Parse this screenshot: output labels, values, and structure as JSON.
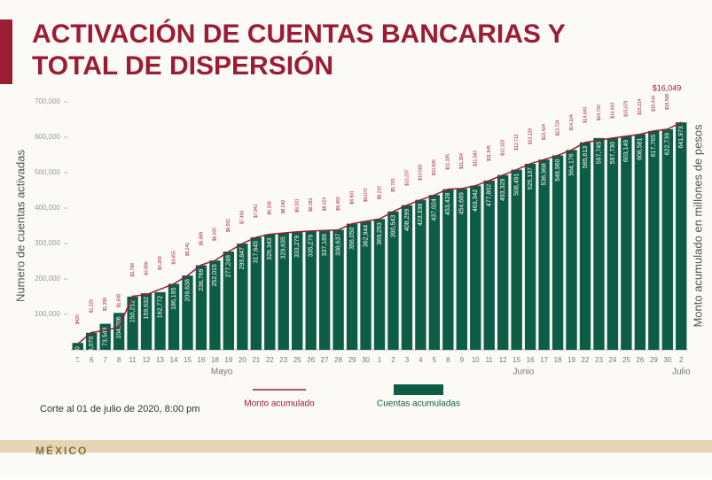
{
  "chart_data": {
    "type": "bar",
    "title": [
      "ACTIVACIÓN DE CUENTAS BANCARIAS Y",
      "TOTAL DE DISPERSIÓN"
    ],
    "y_label": "Numero de cuentas activadas",
    "y2_label": "Monto acumulado en millones de pesos",
    "categories": [
      "5",
      "6",
      "7",
      "8",
      "11",
      "12",
      "13",
      "14",
      "15",
      "16",
      "18",
      "19",
      "20",
      "21",
      "22",
      "23",
      "25",
      "26",
      "27",
      "28",
      "29",
      "30",
      "1",
      "2",
      "3",
      "4",
      "5",
      "8",
      "9",
      "10",
      "11",
      "12",
      "15",
      "16",
      "17",
      "18",
      "19",
      "22",
      "23",
      "24",
      "25",
      "26",
      "29",
      "30",
      "2"
    ],
    "x_groups": [
      {
        "label": "Mayo",
        "count": 22
      },
      {
        "label": "Junio",
        "count": 22
      },
      {
        "label": "Julio",
        "count": 1
      }
    ],
    "ylim": [
      0,
      700000
    ],
    "yticks": [
      {
        "value": 100000,
        "label": "100,000"
      },
      {
        "value": 200000,
        "label": "200,000"
      },
      {
        "value": 300000,
        "label": "300,000"
      },
      {
        "value": 400000,
        "label": "400,000"
      },
      {
        "value": 500000,
        "label": "500,000"
      },
      {
        "value": 600000,
        "label": "600,000"
      },
      {
        "value": 700000,
        "label": "700,000"
      }
    ],
    "y2lim": [
      0,
      17500
    ],
    "series": [
      {
        "name": "Cuentas acumuladas",
        "type": "bar",
        "color": "#0d5c46",
        "values": [
          19420,
          48070,
          73548,
          104206,
          150212,
          159632,
          162772,
          186195,
          209638,
          238769,
          252015,
          277248,
          299847,
          317645,
          326343,
          329635,
          333279,
          335279,
          337189,
          338637,
          356050,
          362944,
          369293,
          390543,
          408299,
          423338,
          437024,
          453428,
          454689,
          463342,
          477802,
          493329,
          508491,
          525137,
          536968,
          548960,
          564176,
          585613,
          597745,
          597730,
          603149,
          608581,
          617765,
          622739,
          641973
        ],
        "value_labels": [
          "19,420",
          "48,070",
          "73,548",
          "104,206",
          "150,212",
          "159,632",
          "162,772",
          "186,195",
          "209,638",
          "238,769",
          "252,015",
          "277,248",
          "299,847",
          "317,645",
          "326,343",
          "329,635",
          "333,279",
          "335,279",
          "337,189",
          "338,637",
          "356,050",
          "362,944",
          "369,293",
          "390,543",
          "408,299",
          "423,338",
          "437,024",
          "453,428",
          "454,689",
          "463,342",
          "477,802",
          "493,329",
          "508,491",
          "525,137",
          "536,968",
          "548,960",
          "564,176",
          "585,613",
          "597,745",
          "597,730",
          "603,149",
          "608,581",
          "617,765",
          "622,739",
          "641,973"
        ]
      },
      {
        "name": "Monto acumulado",
        "type": "line",
        "axis": "y2",
        "color": "#9b1c35",
        "values": [
          420,
          1229,
          1358,
          1608,
          3788,
          3890,
          4269,
          4655,
          5241,
          5989,
          6300,
          6931,
          7496,
          7941,
          8158,
          8240,
          8331,
          8381,
          8424,
          8463,
          8901,
          9073,
          9232,
          9763,
          10207,
          10583,
          10926,
          11335,
          11384,
          11583,
          11945,
          12333,
          12712,
          13128,
          13424,
          13724,
          14104,
          14640,
          14793,
          14943,
          15079,
          15214,
          15444,
          15568,
          16049
        ],
        "value_labels": [
          "$420",
          "$1,229",
          "$1,358",
          "$1,608",
          "$3,788",
          "$3,890",
          "$4,269",
          "$4,655",
          "$5,241",
          "$5,989",
          "$6,300",
          "$6,931",
          "$7,496",
          "$7,941",
          "$8,158",
          "$8,240",
          "$8,331",
          "$8,381",
          "$8,424",
          "$8,463",
          "$8,901",
          "$9,073",
          "$9,232",
          "$9,763",
          "$10,207",
          "$10,583",
          "$10,926",
          "$11,335",
          "$11,384",
          "$11,583",
          "$11,945",
          "$12,333",
          "$12,712",
          "$13,128",
          "$13,424",
          "$13,724",
          "$14,104",
          "$14,640",
          "$14,793",
          "$14,943",
          "$15,079",
          "$15,214",
          "$15,444",
          "$15,568",
          "$16,049"
        ]
      }
    ],
    "note": "Corte al 01 de julio de 2020, 8:00 pm",
    "logo": "MÉXICO"
  }
}
